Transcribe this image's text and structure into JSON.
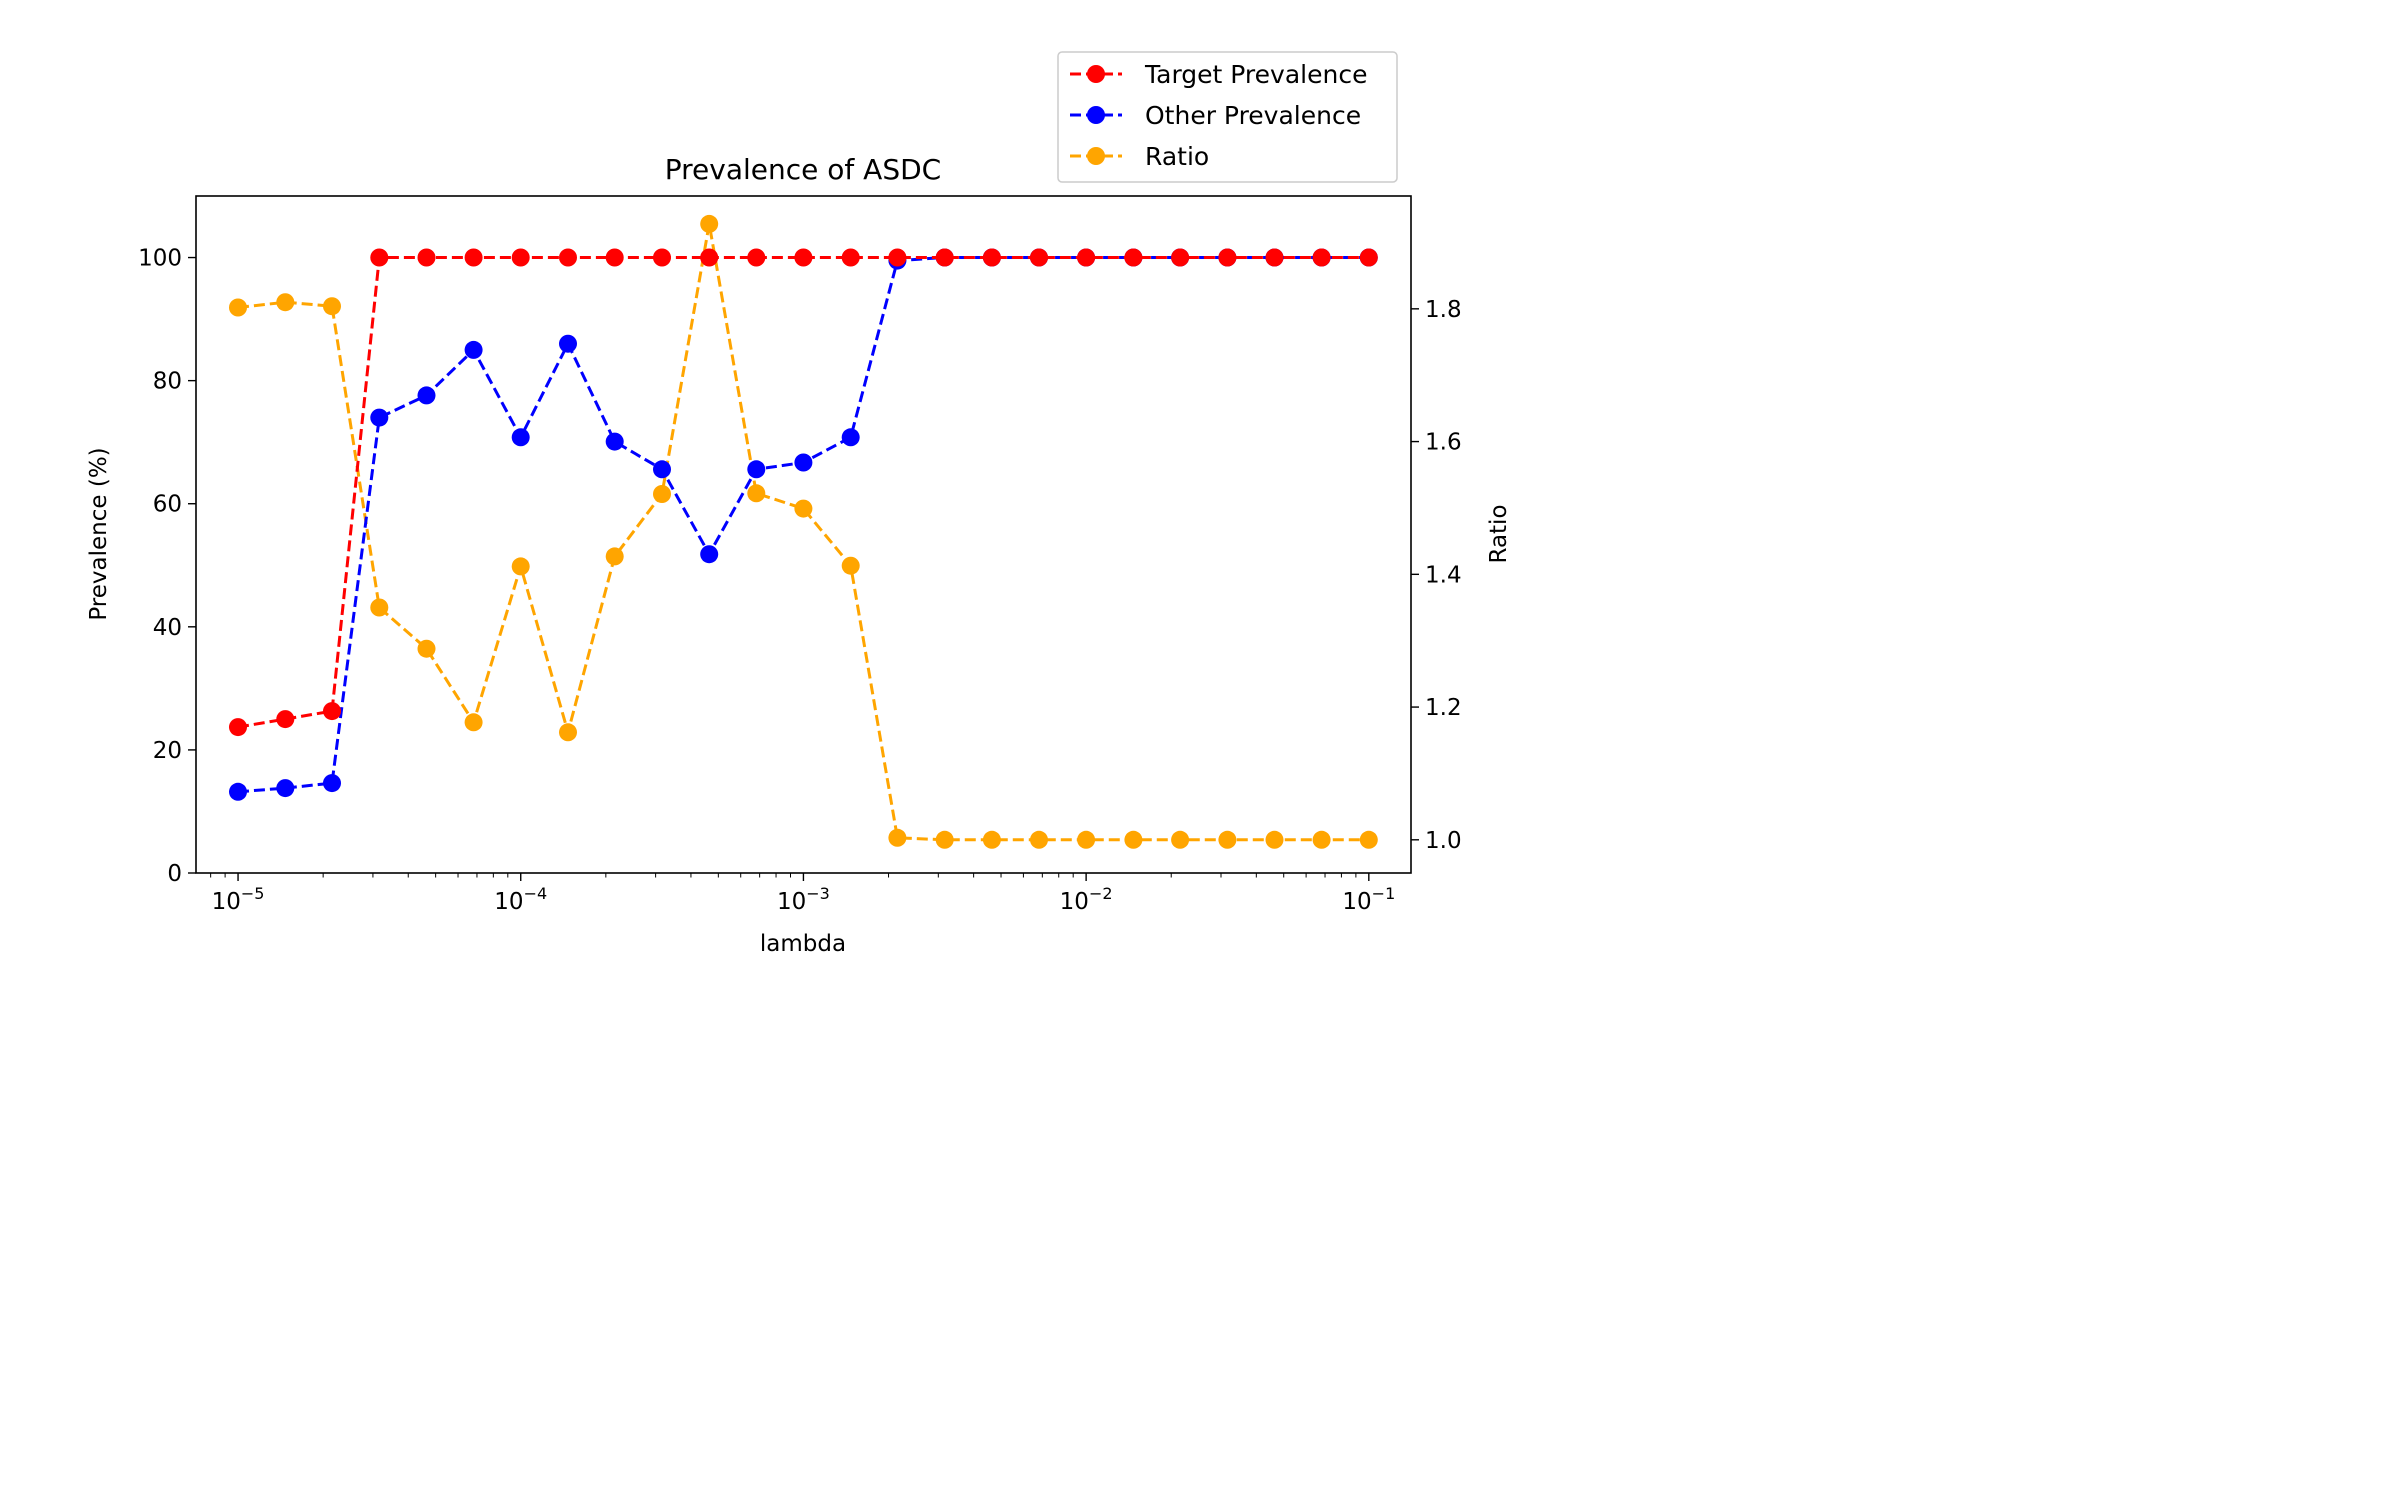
{
  "chart_data": {
    "type": "line",
    "title": "Prevalence of ASDC",
    "xlabel": "lambda",
    "ylabel": "Prevalence (%)",
    "y2label": "Ratio",
    "xscale": "log",
    "xlim": [
      7.1e-06,
      0.141
    ],
    "ylim": [
      0,
      110
    ],
    "y2lim": [
      0.95,
      1.97
    ],
    "xticks": [
      {
        "value": 1e-05,
        "base": "10",
        "exp": "−5"
      },
      {
        "value": 0.0001,
        "base": "10",
        "exp": "−4"
      },
      {
        "value": 0.001,
        "base": "10",
        "exp": "−3"
      },
      {
        "value": 0.01,
        "base": "10",
        "exp": "−2"
      },
      {
        "value": 0.1,
        "base": "10",
        "exp": "−1"
      }
    ],
    "yticks": [
      "0",
      "20",
      "40",
      "60",
      "80",
      "100"
    ],
    "y2ticks": [
      "1.0",
      "1.2",
      "1.4",
      "1.6",
      "1.8"
    ],
    "grid": false,
    "legend_position": "top-right",
    "x": [
      1e-05,
      1.47e-05,
      2.15e-05,
      3.16e-05,
      4.64e-05,
      6.81e-05,
      0.0001,
      0.000147,
      0.000215,
      0.000316,
      0.000464,
      0.000681,
      0.001,
      0.00147,
      0.00215,
      0.00316,
      0.00464,
      0.00681,
      0.01,
      0.0147,
      0.0215,
      0.0316,
      0.0464,
      0.0681,
      0.1
    ],
    "series": [
      {
        "name": "Target Prevalence",
        "axis": "left",
        "color": "#ff0000",
        "values": [
          23.7,
          25.0,
          26.3,
          100,
          100,
          100,
          100,
          100,
          100,
          100,
          100,
          100,
          100,
          100,
          100,
          100,
          100,
          100,
          100,
          100,
          100,
          100,
          100,
          100,
          100
        ]
      },
      {
        "name": "Other Prevalence",
        "axis": "left",
        "color": "#0000ff",
        "values": [
          13.2,
          13.8,
          14.6,
          74.0,
          77.6,
          85.0,
          70.8,
          86.0,
          70.1,
          65.6,
          51.8,
          65.6,
          66.7,
          70.8,
          99.5,
          100,
          100,
          100,
          100,
          100,
          100,
          100,
          100,
          100,
          100
        ]
      },
      {
        "name": "Ratio",
        "axis": "right",
        "color": "#ffa500",
        "values": [
          1.802,
          1.81,
          1.804,
          1.35,
          1.288,
          1.177,
          1.412,
          1.162,
          1.427,
          1.521,
          1.928,
          1.522,
          1.499,
          1.413,
          1.003,
          1.0,
          1.0,
          1.0,
          1.0,
          1.0,
          1.0,
          1.0,
          1.0,
          1.0,
          1.0
        ]
      }
    ]
  }
}
